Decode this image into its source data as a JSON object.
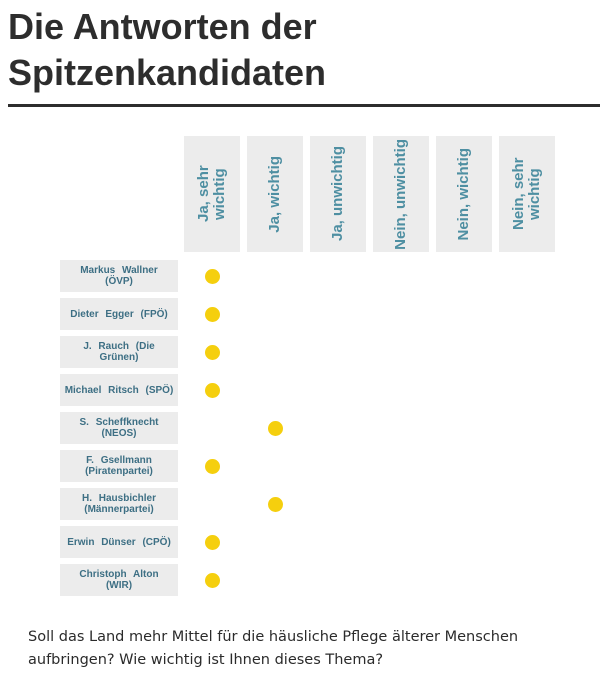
{
  "title": "Die Antworten der Spitzenkandidaten",
  "question": "Soll das Land mehr Mittel für die häusliche Pflege älterer Menschen aufbringen? Wie wichtig ist Ihnen dieses Thema?",
  "colors": {
    "dot": "#f5cf0e",
    "header_text": "#4e8fa2",
    "label_text": "#3d6f84",
    "cell_bg": "#ececec"
  },
  "chart_data": {
    "type": "table",
    "columns": [
      "Ja, sehr wichtig",
      "Ja, wichtig",
      "Ja, unwichtig",
      "Nein, unwichtig",
      "Nein, wichtig",
      "Nein, sehr wichtig"
    ],
    "rows": [
      {
        "label": "Markus Wallner (ÖVP)",
        "answer": "Ja, sehr wichtig"
      },
      {
        "label": "Dieter Egger (FPÖ)",
        "answer": "Ja, sehr wichtig"
      },
      {
        "label": "J. Rauch (Die Grünen)",
        "answer": "Ja, sehr wichtig"
      },
      {
        "label": "Michael Ritsch (SPÖ)",
        "answer": "Ja, sehr wichtig"
      },
      {
        "label": "S. Scheffknecht (NEOS)",
        "answer": "Ja, wichtig"
      },
      {
        "label": "F. Gsellmann (Piratenpartei)",
        "answer": "Ja, sehr wichtig"
      },
      {
        "label": "H. Hausbichler (Männerpartei)",
        "answer": "Ja, wichtig"
      },
      {
        "label": "Erwin Dünser (CPÖ)",
        "answer": "Ja, sehr wichtig"
      },
      {
        "label": "Christoph Alton (WIR)",
        "answer": "Ja, sehr wichtig"
      }
    ]
  }
}
